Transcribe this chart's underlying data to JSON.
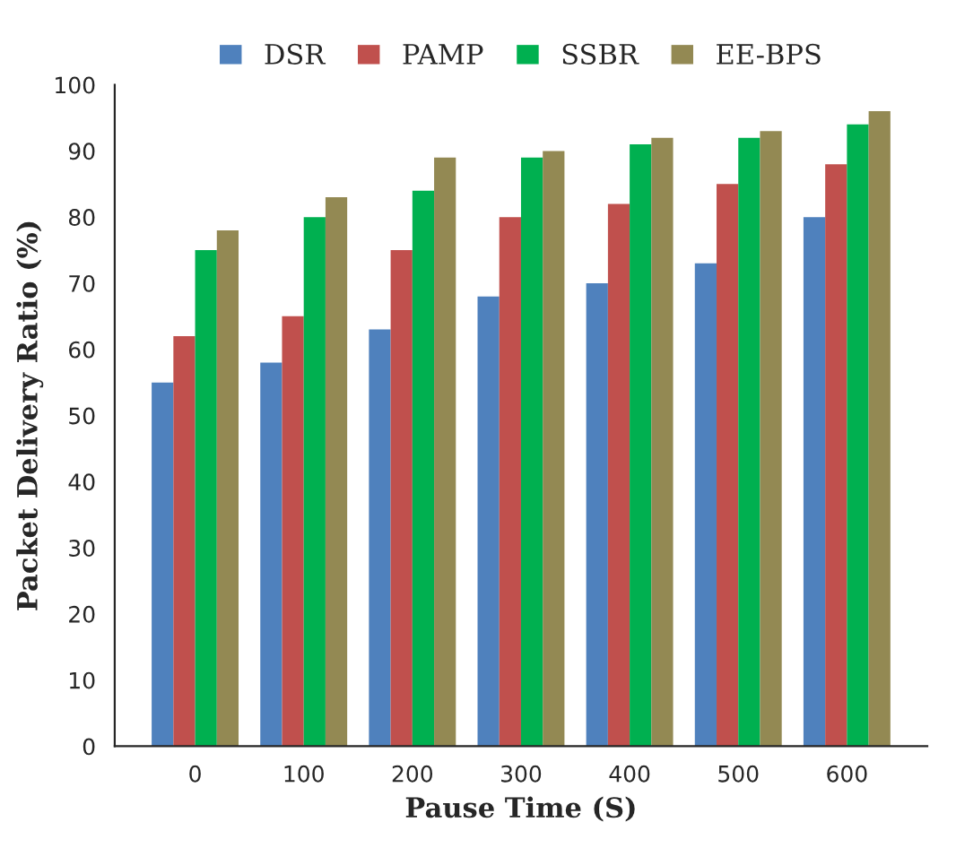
{
  "chart_data": {
    "type": "bar",
    "xlabel": "Pause Time (S)",
    "ylabel": "Packet Delivery Ratio (%)",
    "categories": [
      "0",
      "100",
      "200",
      "300",
      "400",
      "500",
      "600"
    ],
    "series": [
      {
        "name": "DSR",
        "color": "#4f81bd",
        "values": [
          55,
          58,
          63,
          68,
          70,
          73,
          80
        ]
      },
      {
        "name": "PAMP",
        "color": "#c0504d",
        "values": [
          62,
          65,
          75,
          80,
          82,
          85,
          88
        ]
      },
      {
        "name": "SSBR",
        "color": "#00b050",
        "values": [
          75,
          80,
          84,
          89,
          91,
          92,
          94
        ]
      },
      {
        "name": "EE-BPS",
        "color": "#938953",
        "values": [
          78,
          83,
          89,
          90,
          92,
          93,
          96
        ]
      }
    ],
    "ylim": [
      0,
      100
    ],
    "yticks": [
      0,
      10,
      20,
      30,
      40,
      50,
      60,
      70,
      80,
      90,
      100
    ],
    "grid": false,
    "legend": "top"
  }
}
